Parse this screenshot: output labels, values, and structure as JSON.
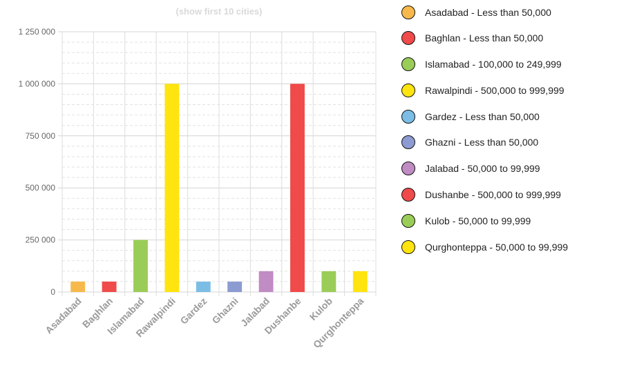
{
  "chart_data": {
    "type": "bar",
    "title": "(show first 10 cities)",
    "xlabel": "",
    "ylabel": "",
    "ylim": [
      0,
      1250000
    ],
    "yticks": [
      0,
      250000,
      500000,
      750000,
      1000000,
      1250000
    ],
    "ytick_labels": [
      "0",
      "250 000",
      "500 000",
      "750 000",
      "1 000 000",
      "1 250 000"
    ],
    "grid": true,
    "legend_position": "right",
    "categories": [
      "Asadabad",
      "Baghlan",
      "Islamabad",
      "Rawalpindi",
      "Gardez",
      "Ghazni",
      "Jalabad",
      "Dushanbe",
      "Kulob",
      "Qurghonteppa"
    ],
    "values": [
      50000,
      50000,
      249999,
      999999,
      50000,
      50000,
      99999,
      999999,
      99999,
      99999
    ],
    "colors": [
      "#f7b94c",
      "#f04a4a",
      "#9acd57",
      "#ffe40f",
      "#7cbde6",
      "#8c9bd1",
      "#c18bc4",
      "#f04a4a",
      "#9acd57",
      "#ffe40f"
    ]
  },
  "legend": {
    "items": [
      {
        "label": "Asadabad - Less than 50,000",
        "color": "#f7b94c"
      },
      {
        "label": "Baghlan - Less than 50,000",
        "color": "#f04a4a"
      },
      {
        "label": "Islamabad - 100,000 to 249,999",
        "color": "#9acd57"
      },
      {
        "label": "Rawalpindi - 500,000 to 999,999",
        "color": "#ffe40f"
      },
      {
        "label": "Gardez - Less than 50,000",
        "color": "#7cbde6"
      },
      {
        "label": "Ghazni - Less than 50,000",
        "color": "#8c9bd1"
      },
      {
        "label": "Jalabad - 50,000 to 99,999",
        "color": "#c18bc4"
      },
      {
        "label": "Dushanbe - 500,000 to 999,999",
        "color": "#f04a4a"
      },
      {
        "label": "Kulob - 50,000 to 99,999",
        "color": "#9acd57"
      },
      {
        "label": "Qurghonteppa - 50,000 to 99,999",
        "color": "#ffe40f"
      }
    ]
  }
}
